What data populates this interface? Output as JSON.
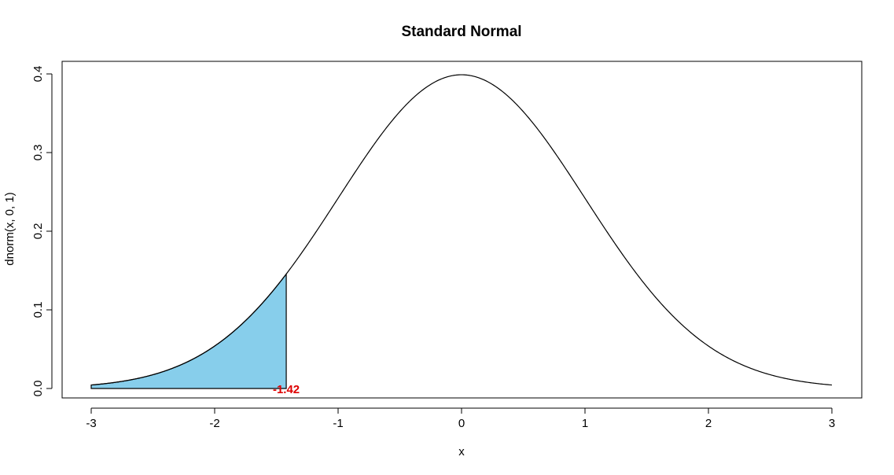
{
  "chart_data": {
    "type": "area",
    "title": "Standard Normal",
    "xlabel": "x",
    "ylabel": "dnorm(x, 0, 1)",
    "xlim": [
      -3,
      3
    ],
    "ylim": [
      0,
      0.4
    ],
    "x_ticks": [
      -3,
      -2,
      -1,
      0,
      1,
      2,
      3
    ],
    "x_tick_labels": [
      "-3",
      "-2",
      "-1",
      "0",
      "1",
      "2",
      "3"
    ],
    "y_ticks": [
      0.0,
      0.1,
      0.2,
      0.3,
      0.4
    ],
    "y_tick_labels": [
      "0.0",
      "0.1",
      "0.2",
      "0.3",
      "0.4"
    ],
    "curve": {
      "function": "dnorm",
      "mean": 0,
      "sd": 1,
      "x_from": -3,
      "x_to": 3,
      "color": "#000000"
    },
    "shaded_region": {
      "x_from": -3,
      "x_to": -1.42,
      "fill": "#87CEEB",
      "stroke": "#000000"
    },
    "annotation": {
      "text": "-1.42",
      "x": -1.42,
      "y": 0,
      "color": "#DD0000"
    },
    "grid": false,
    "legend": "none"
  }
}
